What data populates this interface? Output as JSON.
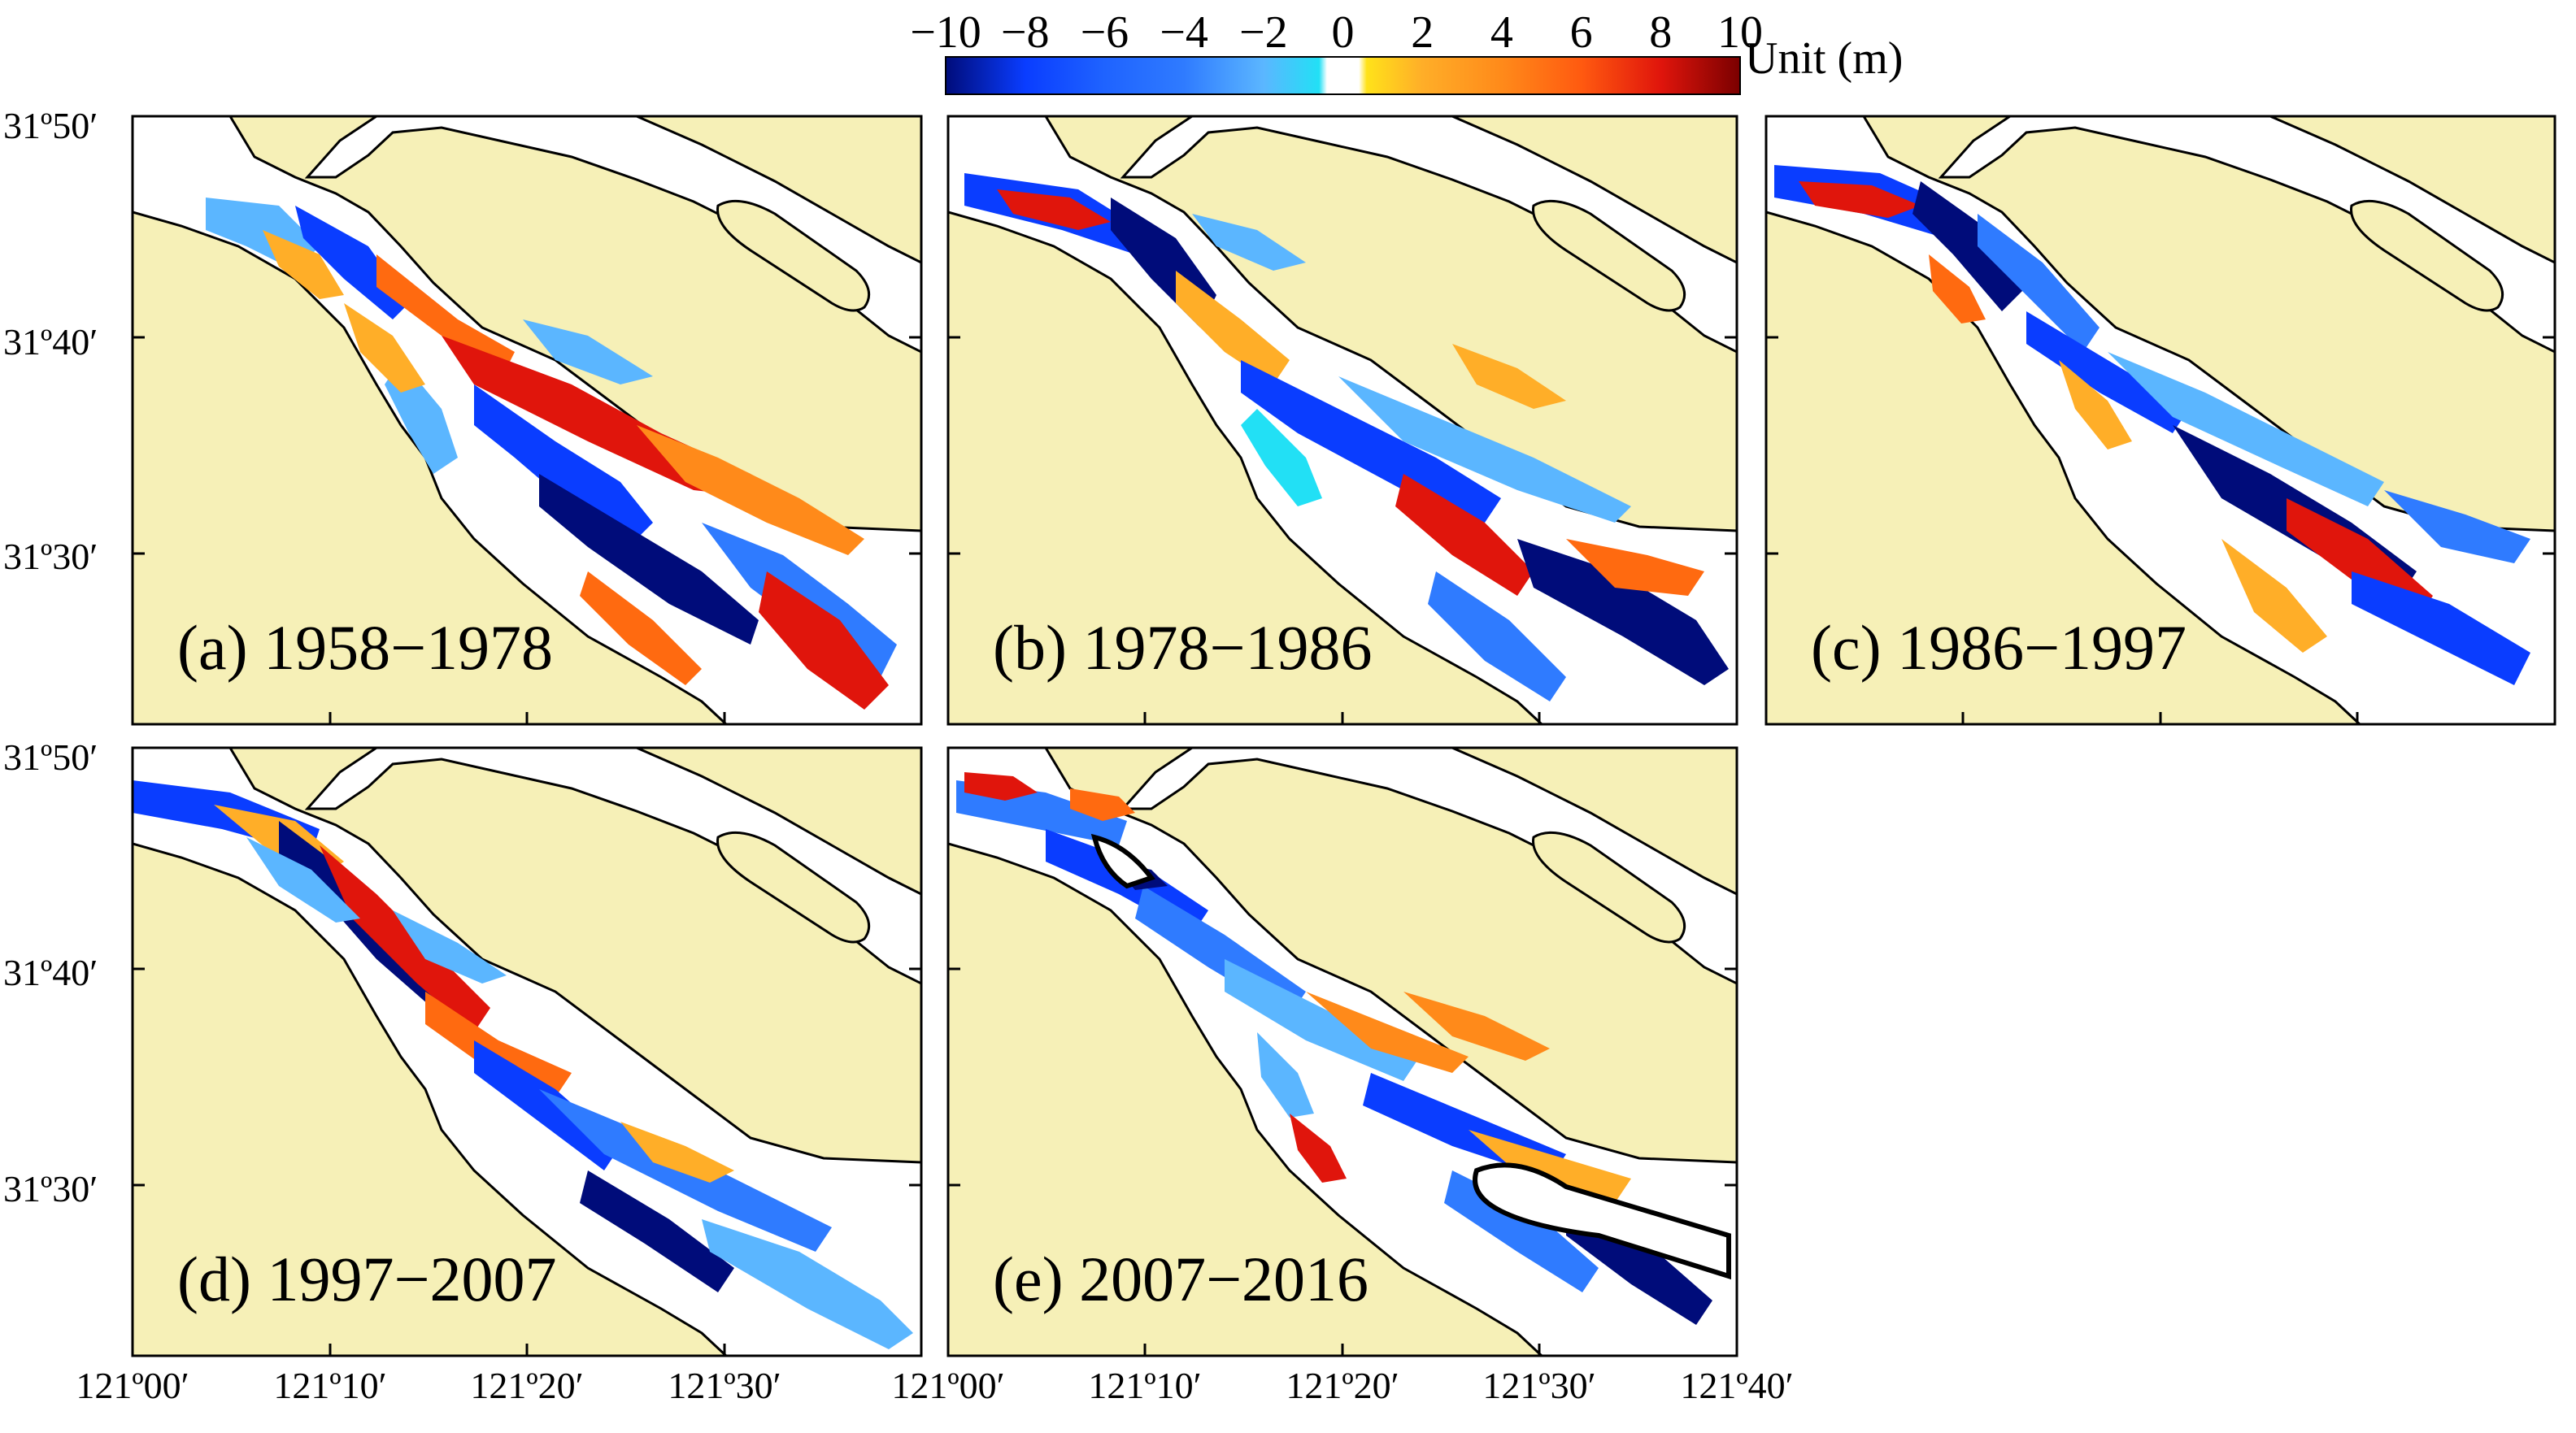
{
  "colorbar": {
    "ticks": [
      "−10",
      "−8",
      "−6",
      "−4",
      "−2",
      "0",
      "2",
      "4",
      "6",
      "8",
      "10"
    ],
    "unit": "Unit (m)",
    "range": [
      -10,
      10
    ],
    "colors": {
      "deep_erosion": "#000c7a",
      "erosion": "#0a3dff",
      "mid_erosion": "#2f7bff",
      "light_erosion": "#5bb6ff",
      "slight_erosion": "#22e0f5",
      "neutral": "#ffffff",
      "slight_deposition": "#ffe21a",
      "light_deposition": "#ffae28",
      "mid_deposition": "#ff6a10",
      "deposition": "#e0150c",
      "heavy_deposition": "#7a0000"
    }
  },
  "land_color": "#f6f0b7",
  "axes": {
    "y_labels": [
      "31º50′",
      "31º40′",
      "31º30′"
    ],
    "x_labels": [
      "121º00′",
      "121º10′",
      "121º20′",
      "121º30′",
      "121º40′"
    ]
  },
  "panels": [
    {
      "label": "(a) 1958−1978"
    },
    {
      "label": "(b) 1978−1986"
    },
    {
      "label": "(c) 1986−1997"
    },
    {
      "label": "(d) 1997−2007"
    },
    {
      "label": "(e) 2007−2016"
    }
  ]
}
